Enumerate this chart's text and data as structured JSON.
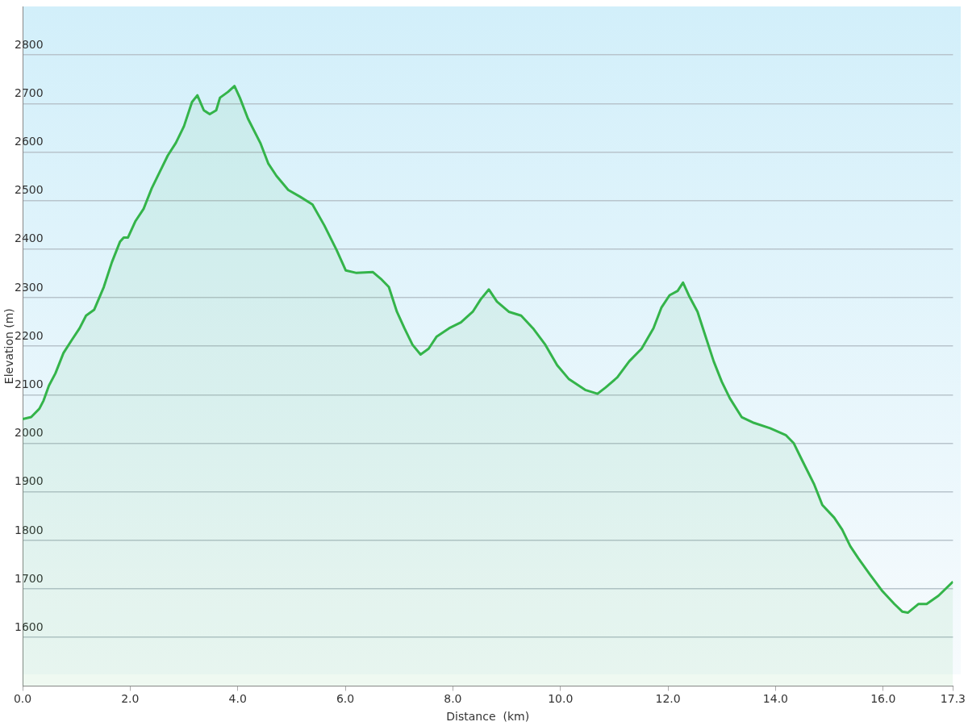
{
  "chart_data": {
    "type": "area",
    "xlabel": "Distance  (km)",
    "ylabel": "Elevation (m)",
    "x": [
      0,
      0.16,
      0.31,
      0.39,
      0.49,
      0.61,
      0.76,
      0.91,
      1.06,
      1.18,
      1.33,
      1.51,
      1.66,
      1.81,
      1.88,
      1.96,
      2.1,
      2.25,
      2.4,
      2.55,
      2.7,
      2.85,
      3.0,
      3.15,
      3.25,
      3.37,
      3.48,
      3.6,
      3.67,
      3.82,
      3.94,
      4.04,
      4.19,
      4.42,
      4.57,
      4.72,
      4.94,
      5.16,
      5.39,
      5.61,
      5.84,
      6.01,
      6.21,
      6.51,
      6.66,
      6.81,
      6.96,
      7.1,
      7.25,
      7.4,
      7.55,
      7.7,
      7.93,
      8.15,
      8.37,
      8.52,
      8.67,
      8.82,
      9.04,
      9.27,
      9.49,
      9.72,
      9.94,
      10.16,
      10.46,
      10.69,
      10.84,
      11.06,
      11.28,
      11.51,
      11.73,
      11.88,
      12.03,
      12.18,
      12.28,
      12.4,
      12.55,
      12.7,
      12.85,
      13.0,
      13.15,
      13.37,
      13.6,
      13.9,
      14.19,
      14.34,
      14.49,
      14.72,
      14.87,
      15.09,
      15.24,
      15.39,
      15.54,
      15.76,
      15.99,
      16.21,
      16.36,
      16.46,
      16.66,
      16.81,
      17.03,
      17.3
    ],
    "series": [
      {
        "color": "#34b44a",
        "values": [
          2050,
          2054,
          2071,
          2088,
          2119,
          2144,
          2186,
          2212,
          2237,
          2263,
          2275,
          2322,
          2373,
          2415,
          2424,
          2424,
          2458,
          2483,
          2525,
          2559,
          2593,
          2619,
          2653,
          2703,
          2717,
          2686,
          2678,
          2686,
          2712,
          2724,
          2736,
          2712,
          2669,
          2619,
          2576,
          2551,
          2522,
          2508,
          2492,
          2449,
          2398,
          2356,
          2351,
          2353,
          2339,
          2322,
          2271,
          2237,
          2203,
          2183,
          2195,
          2220,
          2237,
          2249,
          2271,
          2297,
          2317,
          2292,
          2271,
          2263,
          2237,
          2203,
          2161,
          2132,
          2110,
          2102,
          2115,
          2136,
          2169,
          2195,
          2237,
          2280,
          2305,
          2314,
          2331,
          2302,
          2271,
          2220,
          2169,
          2127,
          2093,
          2054,
          2042,
          2031,
          2017,
          2000,
          1966,
          1915,
          1873,
          1847,
          1822,
          1788,
          1763,
          1729,
          1695,
          1669,
          1653,
          1651,
          1669,
          1669,
          1686,
          1715
        ]
      }
    ],
    "xlim": [
      0,
      17.3
    ],
    "xticks": [
      {
        "value": 0,
        "label": "0.0"
      },
      {
        "value": 2,
        "label": "2.0"
      },
      {
        "value": 4,
        "label": "4.0"
      },
      {
        "value": 6,
        "label": "6.0"
      },
      {
        "value": 8,
        "label": "8.0"
      },
      {
        "value": 10,
        "label": "10.0"
      },
      {
        "value": 12,
        "label": "12.0"
      },
      {
        "value": 14,
        "label": "14.0"
      },
      {
        "value": 16,
        "label": "16.0"
      },
      17.3
    ],
    "ylim": [
      1500,
      2900
    ],
    "yticks": [
      1600,
      1700,
      1800,
      1900,
      2000,
      2100,
      2200,
      2300,
      2400,
      2500,
      2600,
      2700,
      2800
    ],
    "grid": "y",
    "legend": false,
    "marker": "none",
    "line_style": "solid"
  }
}
